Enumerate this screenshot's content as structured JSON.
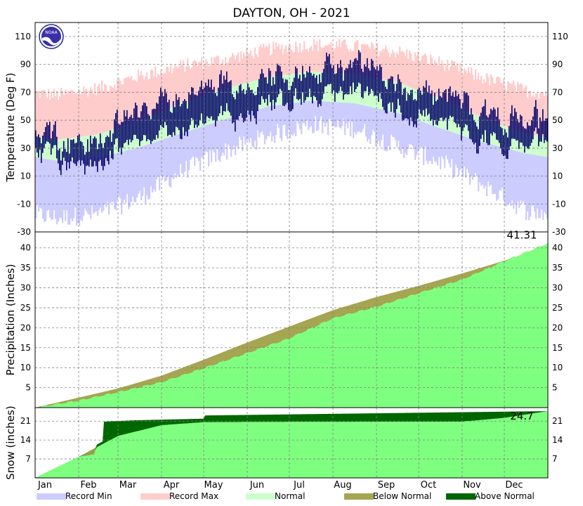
{
  "chart_data": {
    "type": "area",
    "title": "DAYTON, OH - 2021",
    "months": [
      "Jan",
      "Feb",
      "Mar",
      "Apr",
      "May",
      "Jun",
      "Jul",
      "Aug",
      "Sep",
      "Oct",
      "Nov",
      "Dec"
    ],
    "legend": [
      {
        "name": "Record Min",
        "color": "#ccccff"
      },
      {
        "name": "Record Max",
        "color": "#ffcccc"
      },
      {
        "name": "Normal",
        "color": "#ccffcc"
      },
      {
        "name": "Below Normal",
        "color": "#a5a552"
      },
      {
        "name": "Above Normal",
        "color": "#006600"
      }
    ],
    "colors": {
      "observed_temp": "#000066",
      "observed_fill": "#7fff7f"
    },
    "panels": {
      "temperature": {
        "ylabel": "Temperature (Deg F)",
        "ylim": [
          -30,
          120
        ],
        "ticks": [
          -30,
          -10,
          10,
          30,
          50,
          70,
          90,
          110
        ],
        "normal_high_monthly": [
          36,
          40,
          50,
          63,
          73,
          81,
          85,
          83,
          77,
          65,
          51,
          40
        ],
        "normal_low_monthly": [
          21,
          23,
          31,
          41,
          51,
          60,
          64,
          62,
          55,
          44,
          34,
          26
        ],
        "record_high_monthly": [
          68,
          73,
          82,
          89,
          94,
          101,
          104,
          103,
          99,
          91,
          80,
          71
        ],
        "record_low_monthly": [
          -20,
          -17,
          -5,
          14,
          28,
          39,
          47,
          44,
          31,
          20,
          3,
          -15
        ],
        "observed_high_monthly": [
          38,
          33,
          58,
          66,
          72,
          84,
          83,
          85,
          78,
          72,
          53,
          52
        ],
        "observed_low_monthly": [
          25,
          17,
          37,
          42,
          50,
          65,
          66,
          67,
          58,
          52,
          32,
          35
        ]
      },
      "precipitation": {
        "ylabel": "Precipitation (Inches)",
        "ylim": [
          0,
          44
        ],
        "ticks": [
          5,
          10,
          15,
          20,
          25,
          30,
          35,
          40
        ],
        "annotation": "41.31",
        "cum_normal": [
          [
            0,
            0
          ],
          [
            31,
            2.5
          ],
          [
            59,
            4.8
          ],
          [
            90,
            8.0
          ],
          [
            120,
            12.0
          ],
          [
            151,
            16.3
          ],
          [
            181,
            20.3
          ],
          [
            212,
            24.4
          ],
          [
            243,
            27.7
          ],
          [
            273,
            30.5
          ],
          [
            304,
            33.6
          ],
          [
            334,
            36.8
          ],
          [
            365,
            40.0
          ]
        ],
        "cum_observed": [
          [
            0,
            0
          ],
          [
            15,
            1.0
          ],
          [
            31,
            1.9
          ],
          [
            59,
            4.0
          ],
          [
            90,
            6.5
          ],
          [
            120,
            10.0
          ],
          [
            151,
            13.8
          ],
          [
            181,
            17.5
          ],
          [
            212,
            22.5
          ],
          [
            243,
            25.4
          ],
          [
            273,
            28.8
          ],
          [
            304,
            32.2
          ],
          [
            334,
            36.8
          ],
          [
            365,
            41.31
          ]
        ]
      },
      "snow": {
        "ylabel": "Snow (inches)",
        "ylim": [
          0,
          26
        ],
        "ticks": [
          7,
          14,
          21
        ],
        "annotation": "24.7",
        "cum_normal": [
          [
            0,
            0
          ],
          [
            31,
            7.8
          ],
          [
            59,
            15.5
          ],
          [
            90,
            19.5
          ],
          [
            120,
            20.6
          ],
          [
            151,
            20.7
          ],
          [
            304,
            20.8
          ],
          [
            334,
            22.2
          ],
          [
            365,
            24.7
          ]
        ],
        "cum_observed": [
          [
            0,
            0
          ],
          [
            31,
            7.8
          ],
          [
            42,
            8.7
          ],
          [
            44,
            12.3
          ],
          [
            48,
            13.5
          ],
          [
            49,
            20.8
          ],
          [
            70,
            21.3
          ],
          [
            120,
            21.9
          ],
          [
            121,
            23.1
          ],
          [
            365,
            24.7
          ]
        ]
      }
    }
  }
}
